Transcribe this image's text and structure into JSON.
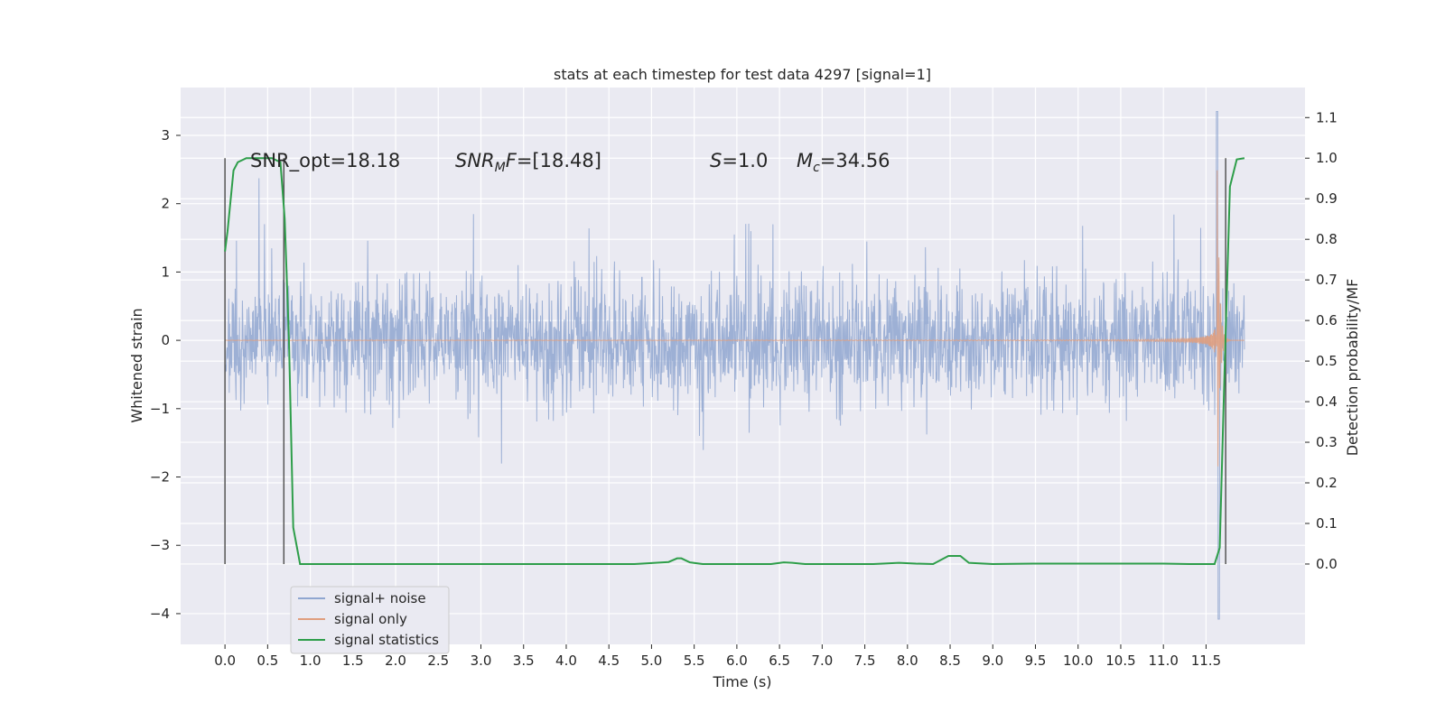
{
  "chart_data": {
    "type": "line",
    "title": "stats at each timestep for test data 4297 [signal=1]",
    "xlabel": "Time (s)",
    "ylabel": "Whitened strain",
    "y2label": "Detection probability/MF",
    "xlim": [
      -0.52,
      12.66
    ],
    "ylim": [
      -4.45,
      3.7
    ],
    "y2lim": [
      -0.198,
      1.174
    ],
    "grid": true,
    "legend_position": "lower-left",
    "x_ticks": [
      "0.0",
      "0.5",
      "1.0",
      "1.5",
      "2.0",
      "2.5",
      "3.0",
      "3.5",
      "4.0",
      "4.5",
      "5.0",
      "5.5",
      "6.0",
      "6.5",
      "7.0",
      "7.5",
      "8.0",
      "8.5",
      "9.0",
      "9.5",
      "10.0",
      "10.5",
      "11.0",
      "11.5"
    ],
    "x_tick_values": [
      0,
      0.5,
      1,
      1.5,
      2,
      2.5,
      3,
      3.5,
      4,
      4.5,
      5,
      5.5,
      6,
      6.5,
      7,
      7.5,
      8,
      8.5,
      9,
      9.5,
      10,
      10.5,
      11,
      11.5
    ],
    "y_ticks": [
      "3",
      "2",
      "1",
      "0",
      "−1",
      "−2",
      "−3",
      "−4"
    ],
    "y_tick_values": [
      3,
      2,
      1,
      0,
      -1,
      -2,
      -3,
      -4
    ],
    "y2_ticks": [
      "1.1",
      "1.0",
      "0.9",
      "0.8",
      "0.7",
      "0.6",
      "0.5",
      "0.4",
      "0.3",
      "0.2",
      "0.1",
      "0.0"
    ],
    "y2_tick_values": [
      1.1,
      1.0,
      0.9,
      0.8,
      0.7,
      0.6,
      0.5,
      0.4,
      0.3,
      0.2,
      0.1,
      0.0
    ],
    "annotations": {
      "snr_opt": "SNR_opt=18.18",
      "snr_mf_prefix": "SNR",
      "snr_mf_sub": "M",
      "snr_mf_rest": "F=[18.48]",
      "s_var": "S",
      "s_rest": "=1.0",
      "mc_var": "M",
      "mc_sub": "c",
      "mc_rest": "=34.56"
    },
    "series": [
      {
        "name": "signal+ noise",
        "color": "#8fa6d0",
        "kind": "noise",
        "x_range": [
          0,
          11.95
        ],
        "y_band": [
          -1.5,
          2.6
        ],
        "peak": [
          11.63,
          3.35
        ],
        "trough": [
          11.65,
          -4.08
        ]
      },
      {
        "name": "signal only",
        "color": "#e09e7e",
        "kind": "chirp",
        "x_range": [
          0,
          11.95
        ],
        "peak_amplitude": 2.85,
        "merger_time": 11.63
      },
      {
        "name": "signal statistics",
        "color": "#2e9e4a",
        "axis": "right",
        "x": [
          0.0,
          0.03,
          0.1,
          0.15,
          0.25,
          0.4,
          0.55,
          0.65,
          0.7,
          0.75,
          0.8,
          0.88,
          1.0,
          2.0,
          3.0,
          4.0,
          4.8,
          5.2,
          5.3,
          5.35,
          5.45,
          5.6,
          6.0,
          6.4,
          6.55,
          6.65,
          6.8,
          7.2,
          7.6,
          7.9,
          8.1,
          8.3,
          8.48,
          8.55,
          8.62,
          8.72,
          9.0,
          9.5,
          10.0,
          10.5,
          11.0,
          11.3,
          11.5,
          11.6,
          11.66,
          11.72,
          11.78,
          11.86,
          11.95
        ],
        "y": [
          0.77,
          0.82,
          0.97,
          0.99,
          1.0,
          1.0,
          1.0,
          0.99,
          0.85,
          0.55,
          0.09,
          0.0,
          0.0,
          0.0,
          0.0,
          0.0,
          0.0,
          0.005,
          0.014,
          0.014,
          0.004,
          0.0,
          0.0,
          0.0,
          0.004,
          0.003,
          0.0,
          0.0,
          0.0,
          0.003,
          0.001,
          0.0,
          0.02,
          0.02,
          0.02,
          0.003,
          0.0,
          0.001,
          0.001,
          0.001,
          0.001,
          0.0,
          0.0,
          0.0,
          0.04,
          0.5,
          0.93,
          0.997,
          1.0
        ]
      }
    ],
    "vertical_lines": [
      0.0,
      0.69,
      11.73
    ]
  }
}
